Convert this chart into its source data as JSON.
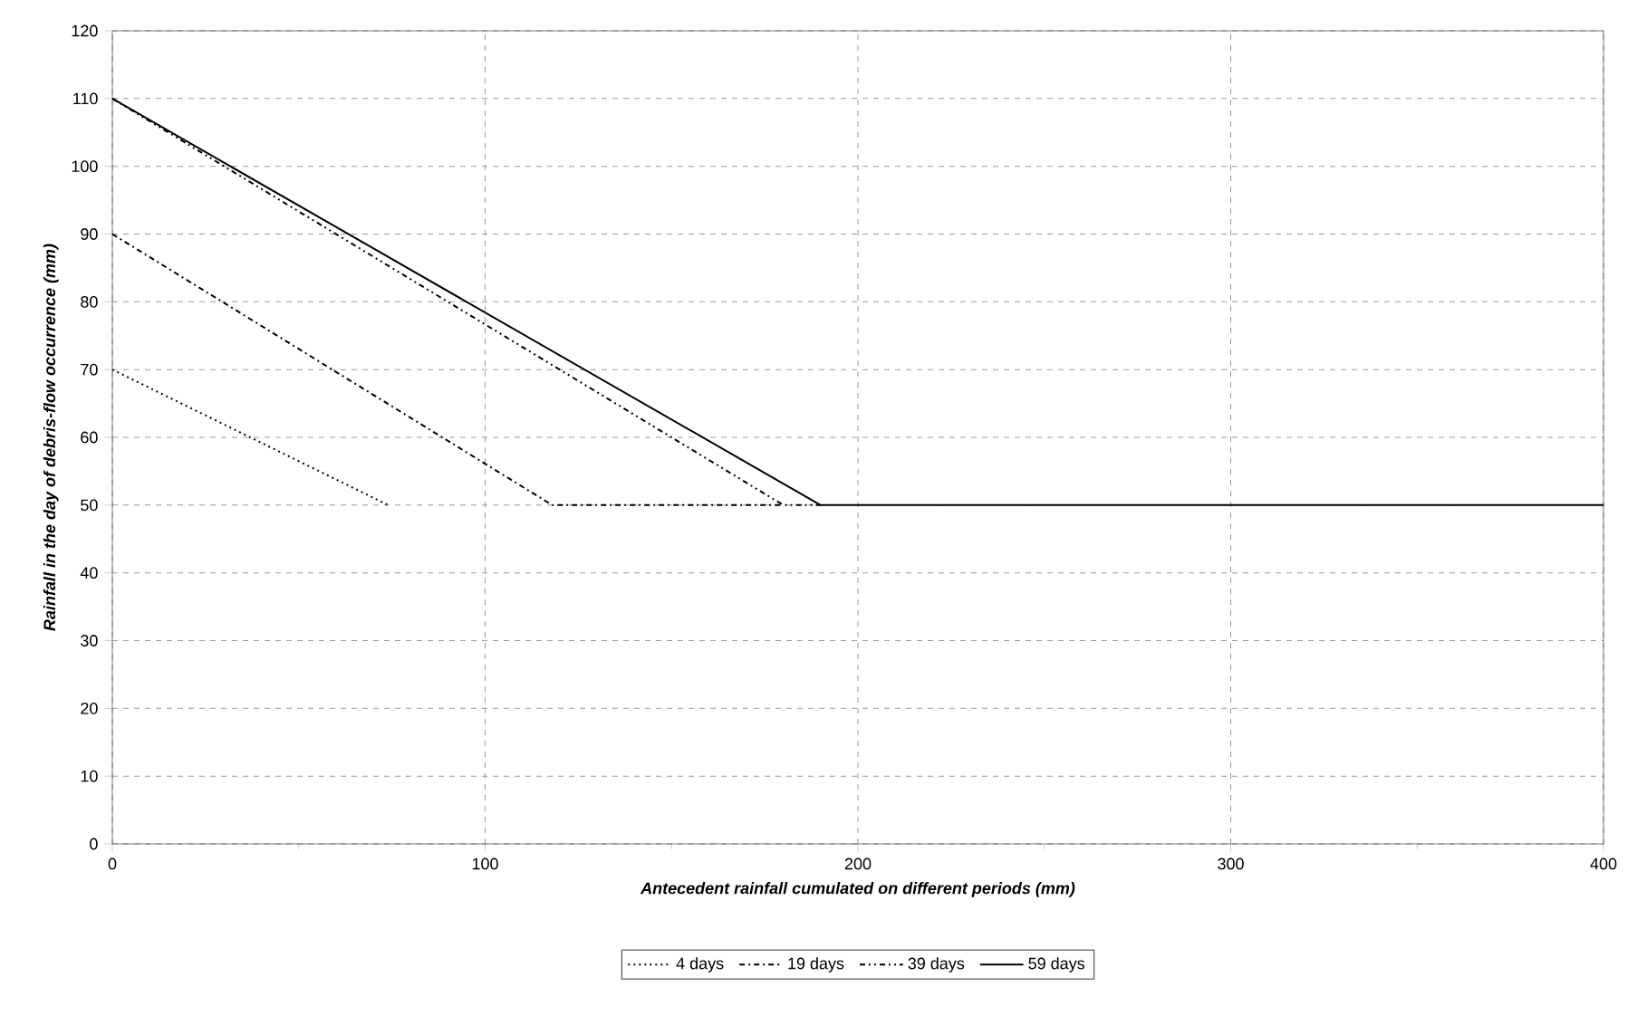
{
  "chart_data": {
    "type": "line",
    "xlabel": "Antecedent rainfall cumulated on different periods (mm)",
    "ylabel": "Rainfall in the day of debris-flow occurrence (mm)",
    "xlim": [
      0,
      400
    ],
    "xticks": [
      0,
      100,
      200,
      300,
      400
    ],
    "ylim": [
      0,
      120
    ],
    "yticks": [
      0,
      10,
      20,
      30,
      40,
      50,
      60,
      70,
      80,
      90,
      100,
      110,
      120
    ],
    "grid": true,
    "legend": "bottom",
    "marker": "none",
    "series": [
      {
        "name": "4 days",
        "color": "#000000",
        "line_style": "dotted",
        "x": [
          0,
          74
        ],
        "values": [
          70,
          50
        ]
      },
      {
        "name": "19 days",
        "color": "#000000",
        "line_style": "dashdot",
        "x": [
          0,
          118,
          180
        ],
        "values": [
          90,
          50,
          50
        ]
      },
      {
        "name": "39 days",
        "color": "#000000",
        "line_style": "dashdotdot",
        "x": [
          0,
          180,
          190
        ],
        "values": [
          110,
          50,
          50
        ]
      },
      {
        "name": "59 days",
        "color": "#000000",
        "line_style": "solid",
        "x": [
          0,
          190,
          400
        ],
        "values": [
          110,
          50,
          50
        ]
      }
    ]
  }
}
